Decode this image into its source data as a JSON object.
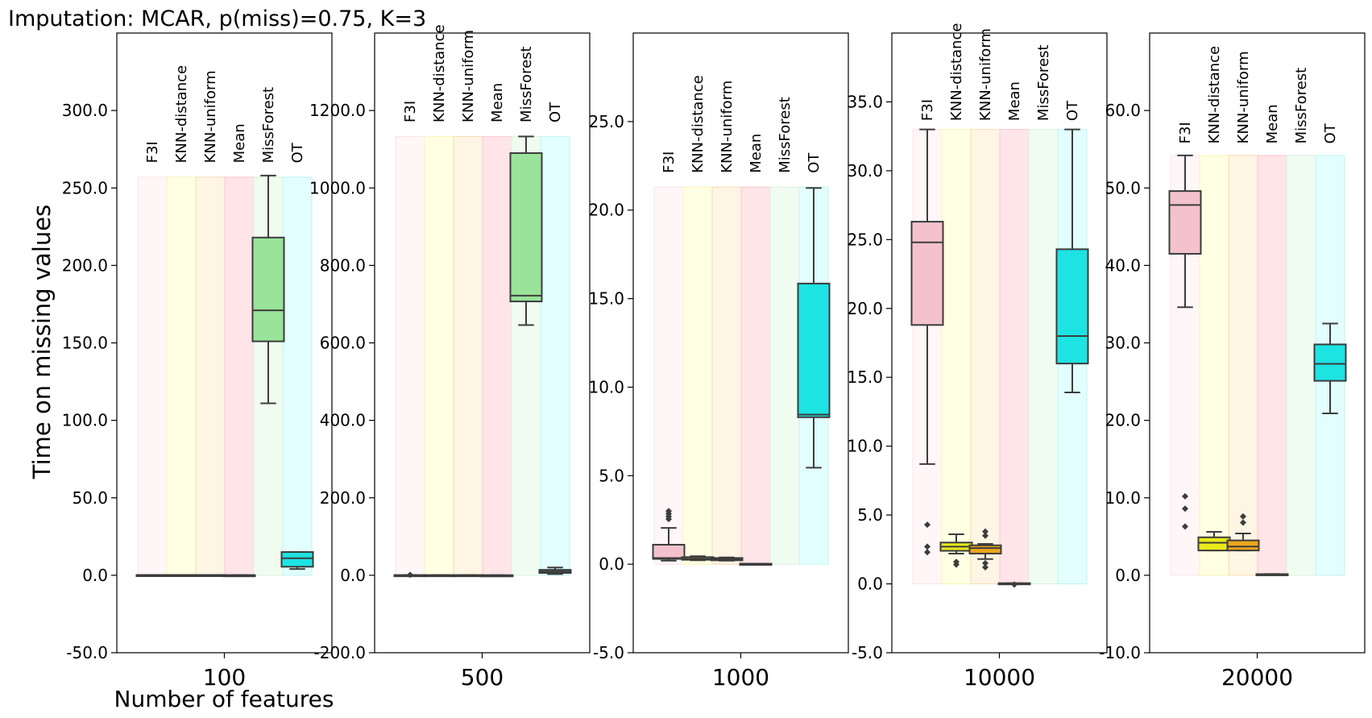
{
  "title": "Imputation: MCAR, p(miss)=0.75, K=3",
  "xlabel": "Number of features",
  "ylabel": "Time on missing values",
  "methods": [
    "F3I",
    "KNN-distance",
    "KNN-uniform",
    "Mean",
    "MissForest",
    "OT"
  ],
  "colors": {
    "F3I": "#f4c2cc",
    "KNN-distance": "#e9e91a",
    "KNN-uniform": "#eea61c",
    "Mean": "#fa8596",
    "MissForest": "#99e39a",
    "OT": "#1ee3e3",
    "whisker": "#3c3c3c"
  },
  "chart_data": [
    {
      "type": "box",
      "category": "100",
      "ylim": [
        -50,
        350
      ],
      "yticks": [
        -50,
        0,
        50,
        100,
        150,
        200,
        250,
        300
      ],
      "ytick_labels": [
        "-50.0",
        "0.0",
        "50.0",
        "100.0",
        "150.0",
        "200.0",
        "250.0",
        "300.0"
      ],
      "band_top": 257,
      "label_base": 265,
      "boxes": [
        {
          "method": "F3I",
          "q1": 0,
          "median": 0,
          "q3": 0.2,
          "whislo": 0,
          "whishi": 0.2,
          "fliers": []
        },
        {
          "method": "KNN-distance",
          "q1": 0,
          "median": 0,
          "q3": 0.2,
          "whislo": 0,
          "whishi": 0.2,
          "fliers": []
        },
        {
          "method": "KNN-uniform",
          "q1": 0,
          "median": 0,
          "q3": 0.2,
          "whislo": 0,
          "whishi": 0.2,
          "fliers": []
        },
        {
          "method": "Mean",
          "q1": 0,
          "median": 0,
          "q3": 0.1,
          "whislo": 0,
          "whishi": 0.1,
          "fliers": []
        },
        {
          "method": "MissForest",
          "q1": 151,
          "median": 171,
          "q3": 218,
          "whislo": 111,
          "whishi": 258,
          "fliers": []
        },
        {
          "method": "OT",
          "q1": 5.5,
          "median": 11,
          "q3": 15,
          "whislo": 4,
          "whishi": 15,
          "fliers": []
        }
      ]
    },
    {
      "type": "box",
      "category": "500",
      "ylim": [
        -200,
        1400
      ],
      "yticks": [
        -200,
        0,
        200,
        400,
        600,
        800,
        1000,
        1200
      ],
      "ytick_labels": [
        "-200.0",
        "0.0",
        "200.0",
        "400.0",
        "600.0",
        "800.0",
        "1000.0",
        "1200.0"
      ],
      "band_top": 1133,
      "label_base": 1165,
      "boxes": [
        {
          "method": "F3I",
          "q1": 0,
          "median": 0,
          "q3": 0.5,
          "whislo": 0,
          "whishi": 0.5,
          "fliers": [
            1
          ]
        },
        {
          "method": "KNN-distance",
          "q1": 0,
          "median": 0,
          "q3": 0.5,
          "whislo": 0,
          "whishi": 0.5,
          "fliers": []
        },
        {
          "method": "KNN-uniform",
          "q1": 0,
          "median": 0,
          "q3": 0.5,
          "whislo": 0,
          "whishi": 0.5,
          "fliers": []
        },
        {
          "method": "Mean",
          "q1": 0,
          "median": 0,
          "q3": 0.2,
          "whislo": 0,
          "whishi": 0.2,
          "fliers": []
        },
        {
          "method": "MissForest",
          "q1": 707,
          "median": 722,
          "q3": 1090,
          "whislo": 646,
          "whishi": 1133,
          "fliers": []
        },
        {
          "method": "OT",
          "q1": 6,
          "median": 10,
          "q3": 14,
          "whislo": 3,
          "whishi": 20,
          "fliers": []
        }
      ]
    },
    {
      "type": "box",
      "category": "1000",
      "ylim": [
        -5,
        30
      ],
      "yticks": [
        -5,
        0,
        5,
        10,
        15,
        20,
        25
      ],
      "ytick_labels": [
        "-5.0",
        "0.0",
        "5.0",
        "10.0",
        "15.0",
        "20.0",
        "25.0"
      ],
      "band_top": 21.3,
      "label_base": 22,
      "boxes": [
        {
          "method": "F3I",
          "q1": 0.3,
          "median": 0.35,
          "q3": 1.1,
          "whislo": 0.2,
          "whishi": 2.05,
          "fliers": [
            2.55,
            2.7,
            2.85,
            3.0
          ]
        },
        {
          "method": "KNN-distance",
          "q1": 0.25,
          "median": 0.3,
          "q3": 0.4,
          "whislo": 0.22,
          "whishi": 0.45,
          "fliers": []
        },
        {
          "method": "KNN-uniform",
          "q1": 0.22,
          "median": 0.28,
          "q3": 0.35,
          "whislo": 0.2,
          "whishi": 0.38,
          "fliers": []
        },
        {
          "method": "Mean",
          "q1": 0,
          "median": 0,
          "q3": 0.03,
          "whislo": 0,
          "whishi": 0.03,
          "fliers": []
        },
        {
          "method": "OT",
          "q1": 8.3,
          "median": 8.45,
          "q3": 15.85,
          "whislo": 5.45,
          "whishi": 21.25,
          "fliers": []
        }
      ]
    },
    {
      "type": "box",
      "category": "10000",
      "ylim": [
        -5,
        40
      ],
      "yticks": [
        -5,
        0,
        5,
        10,
        15,
        20,
        25,
        30,
        35
      ],
      "ytick_labels": [
        "-5.0",
        "0.0",
        "5.0",
        "10.0",
        "15.0",
        "20.0",
        "25.0",
        "30.0",
        "35.0"
      ],
      "band_top": 33,
      "label_base": 33.5,
      "boxes": [
        {
          "method": "F3I",
          "q1": 18.8,
          "median": 24.8,
          "q3": 26.3,
          "whislo": 8.7,
          "whishi": 33,
          "fliers": [
            2.3,
            2.7,
            4.3
          ]
        },
        {
          "method": "KNN-distance",
          "q1": 2.4,
          "median": 2.7,
          "q3": 3.0,
          "whislo": 2.2,
          "whishi": 3.6,
          "fliers": [
            1.4,
            1.6
          ]
        },
        {
          "method": "KNN-uniform",
          "q1": 2.2,
          "median": 2.6,
          "q3": 2.8,
          "whislo": 1.8,
          "whishi": 2.9,
          "fliers": [
            1.2,
            1.5,
            3.5,
            3.8
          ]
        },
        {
          "method": "Mean",
          "q1": 0,
          "median": 0,
          "q3": 0.05,
          "whislo": 0,
          "whishi": 0.05,
          "fliers": [
            -0.05
          ]
        },
        {
          "method": "OT",
          "q1": 16,
          "median": 18,
          "q3": 24.3,
          "whislo": 13.9,
          "whishi": 33,
          "fliers": []
        }
      ]
    },
    {
      "type": "box",
      "category": "20000",
      "ylim": [
        -10,
        70
      ],
      "yticks": [
        -10,
        0,
        10,
        20,
        30,
        40,
        50,
        60
      ],
      "ytick_labels": [
        "-10.0",
        "0.0",
        "10.0",
        "20.0",
        "30.0",
        "40.0",
        "50.0",
        "60.0"
      ],
      "band_top": 54.2,
      "label_base": 55.5,
      "boxes": [
        {
          "method": "F3I",
          "q1": 41.5,
          "median": 47.8,
          "q3": 49.6,
          "whislo": 34.6,
          "whishi": 54.2,
          "fliers": [
            6.3,
            8.6,
            10.2
          ]
        },
        {
          "method": "KNN-distance",
          "q1": 3.2,
          "median": 4.2,
          "q3": 4.9,
          "whislo": 3.2,
          "whishi": 5.6,
          "fliers": []
        },
        {
          "method": "KNN-uniform",
          "q1": 3.2,
          "median": 3.7,
          "q3": 4.5,
          "whislo": 3.2,
          "whishi": 5.4,
          "fliers": [
            6.8,
            7.6
          ]
        },
        {
          "method": "Mean",
          "q1": 0.05,
          "median": 0.1,
          "q3": 0.15,
          "whislo": 0.05,
          "whishi": 0.15,
          "fliers": []
        },
        {
          "method": "OT",
          "q1": 25.1,
          "median": 27.3,
          "q3": 29.8,
          "whislo": 20.9,
          "whishi": 32.5,
          "fliers": []
        }
      ]
    }
  ]
}
